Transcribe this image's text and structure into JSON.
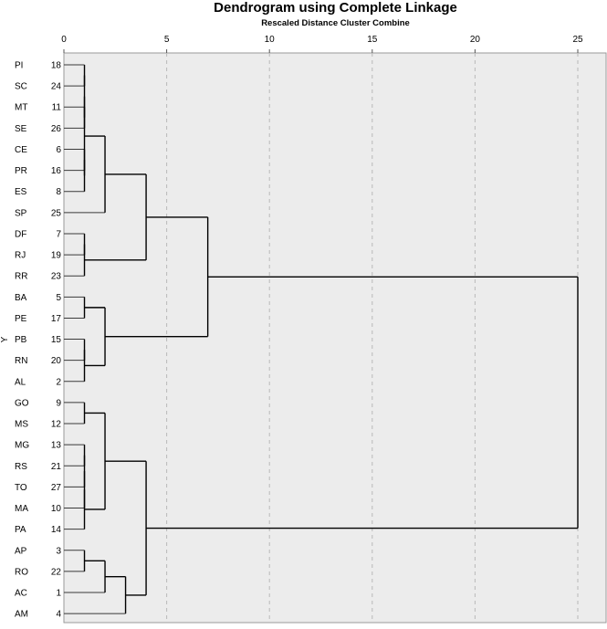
{
  "chart_data": {
    "type": "dendrogram",
    "title": "Dendrogram using Complete Linkage",
    "subtitle": "Rescaled Distance Cluster Combine",
    "y_axis_label": "Y",
    "x_ticks": [
      0,
      5,
      10,
      15,
      20,
      25
    ],
    "xlim": [
      0,
      25
    ],
    "grid": "vertical dashed lines at each tick",
    "leaves": [
      {
        "label": "PI",
        "case": "18"
      },
      {
        "label": "SC",
        "case": "24"
      },
      {
        "label": "MT",
        "case": "11"
      },
      {
        "label": "SE",
        "case": "26"
      },
      {
        "label": "CE",
        "case": "6"
      },
      {
        "label": "PR",
        "case": "16"
      },
      {
        "label": "ES",
        "case": "8"
      },
      {
        "label": "SP",
        "case": "25"
      },
      {
        "label": "DF",
        "case": "7"
      },
      {
        "label": "RJ",
        "case": "19"
      },
      {
        "label": "RR",
        "case": "23"
      },
      {
        "label": "BA",
        "case": "5"
      },
      {
        "label": "PE",
        "case": "17"
      },
      {
        "label": "PB",
        "case": "15"
      },
      {
        "label": "RN",
        "case": "20"
      },
      {
        "label": "AL",
        "case": "2"
      },
      {
        "label": "GO",
        "case": "9"
      },
      {
        "label": "MS",
        "case": "12"
      },
      {
        "label": "MG",
        "case": "13"
      },
      {
        "label": "RS",
        "case": "21"
      },
      {
        "label": "TO",
        "case": "27"
      },
      {
        "label": "MA",
        "case": "10"
      },
      {
        "label": "PA",
        "case": "14"
      },
      {
        "label": "AP",
        "case": "3"
      },
      {
        "label": "RO",
        "case": "22"
      },
      {
        "label": "AC",
        "case": "1"
      },
      {
        "label": "AM",
        "case": "4"
      }
    ],
    "merges": [
      {
        "id": "m1",
        "left": 0,
        "right": 1,
        "height": 1.0
      },
      {
        "id": "m2",
        "left": 2,
        "right": 3,
        "height": 1.0
      },
      {
        "id": "m3",
        "left": "m1",
        "right": "m2",
        "height": 1.0
      },
      {
        "id": "m4",
        "left": 4,
        "right": 5,
        "height": 1.0
      },
      {
        "id": "m5",
        "left": "m4",
        "right": 6,
        "height": 1.0
      },
      {
        "id": "m6",
        "left": "m3",
        "right": "m5",
        "height": 1.0
      },
      {
        "id": "m7",
        "left": "m6",
        "right": 7,
        "height": 2.0
      },
      {
        "id": "m8",
        "left": 8,
        "right": 9,
        "height": 1.0
      },
      {
        "id": "m9",
        "left": "m8",
        "right": 10,
        "height": 1.0
      },
      {
        "id": "m10",
        "left": "m7",
        "right": "m9",
        "height": 4.0
      },
      {
        "id": "m11",
        "left": 11,
        "right": 12,
        "height": 1.0
      },
      {
        "id": "m12",
        "left": 13,
        "right": 14,
        "height": 1.0
      },
      {
        "id": "m13",
        "left": "m12",
        "right": 15,
        "height": 1.0
      },
      {
        "id": "m14",
        "left": "m11",
        "right": "m13",
        "height": 2.0
      },
      {
        "id": "m15",
        "left": "m10",
        "right": "m14",
        "height": 7.0
      },
      {
        "id": "m16",
        "left": 16,
        "right": 17,
        "height": 1.0
      },
      {
        "id": "m17",
        "left": 18,
        "right": 19,
        "height": 1.0
      },
      {
        "id": "m18",
        "left": "m17",
        "right": 20,
        "height": 1.0
      },
      {
        "id": "m19",
        "left": "m18",
        "right": 21,
        "height": 1.0
      },
      {
        "id": "m20",
        "left": "m19",
        "right": 22,
        "height": 1.0
      },
      {
        "id": "m21",
        "left": "m16",
        "right": "m20",
        "height": 2.0
      },
      {
        "id": "m22",
        "left": 23,
        "right": 24,
        "height": 1.0
      },
      {
        "id": "m23",
        "left": "m22",
        "right": 25,
        "height": 2.0
      },
      {
        "id": "m24",
        "left": "m23",
        "right": 26,
        "height": 3.0
      },
      {
        "id": "m25",
        "left": "m21",
        "right": "m24",
        "height": 4.0
      },
      {
        "id": "m26",
        "left": "m15",
        "right": "m25",
        "height": 25.0
      }
    ],
    "colors": {
      "plot_background": "#ececec",
      "line": "#000000",
      "grid": "#b9b9b9",
      "leaf_line_light": "#7a7a7a"
    }
  }
}
